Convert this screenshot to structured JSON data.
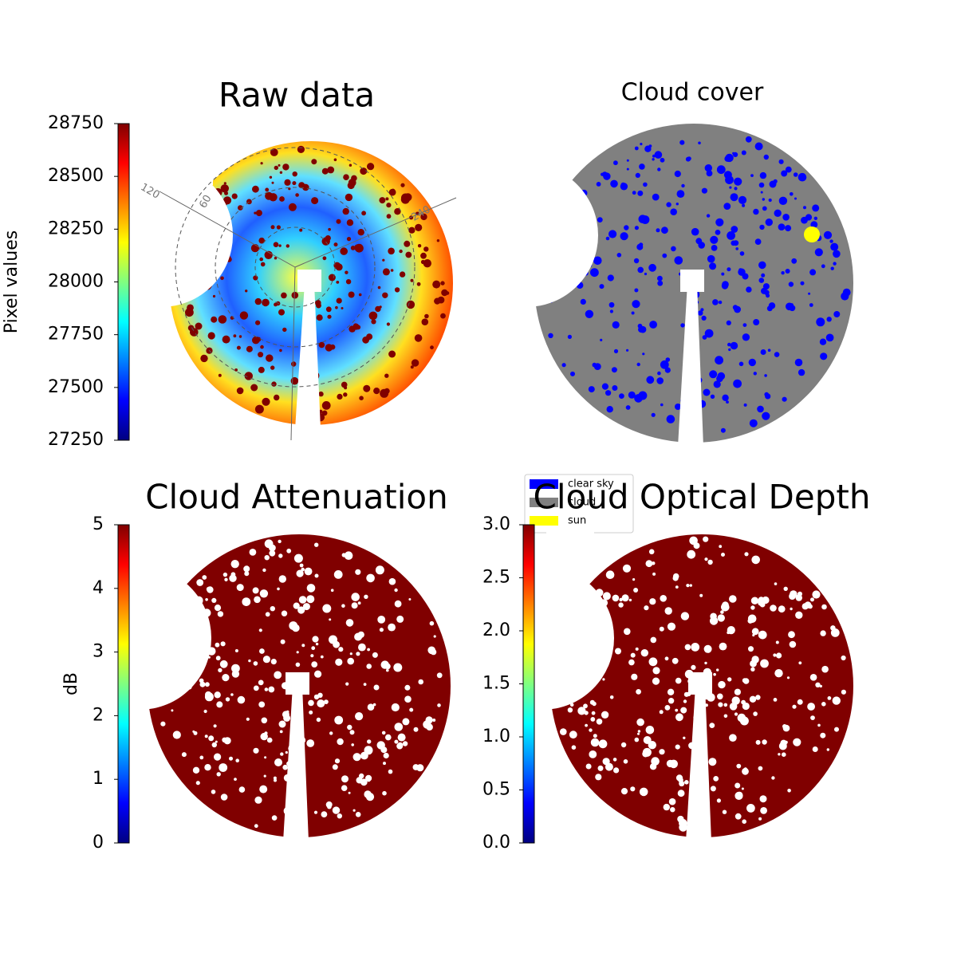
{
  "chart_data": [
    {
      "type": "image",
      "title": "Raw data",
      "colorbar": {
        "label": "Pixel values",
        "cmap": "jet",
        "lim": [
          27250,
          28750
        ],
        "ticks": [
          27250,
          27500,
          27750,
          28000,
          28250,
          28500,
          28750
        ]
      },
      "polar_labels": [
        "120",
        "60",
        "240"
      ]
    },
    {
      "type": "image",
      "title": "Cloud cover",
      "legend": [
        {
          "name": "clear sky",
          "color": "#0000ff"
        },
        {
          "name": "cloud",
          "color": "#808080"
        },
        {
          "name": "sun",
          "color": "#ffff00"
        }
      ]
    },
    {
      "type": "image",
      "title": "Cloud Attenuation",
      "colorbar": {
        "label": "dB",
        "cmap": "jet",
        "lim": [
          0,
          5
        ],
        "ticks": [
          0,
          1,
          2,
          3,
          4,
          5
        ]
      }
    },
    {
      "type": "image",
      "title": "Cloud Optical Depth",
      "colorbar": {
        "cmap": "jet",
        "lim": [
          0,
          3
        ],
        "ticks": [
          {
            "value": 0,
            "label": "0.0"
          },
          0.5,
          {
            "value": 1,
            "label": "1.0"
          },
          1.5,
          {
            "value": 2,
            "label": "2.0"
          },
          2.5,
          {
            "value": 3,
            "label": "3.0"
          }
        ]
      }
    }
  ]
}
